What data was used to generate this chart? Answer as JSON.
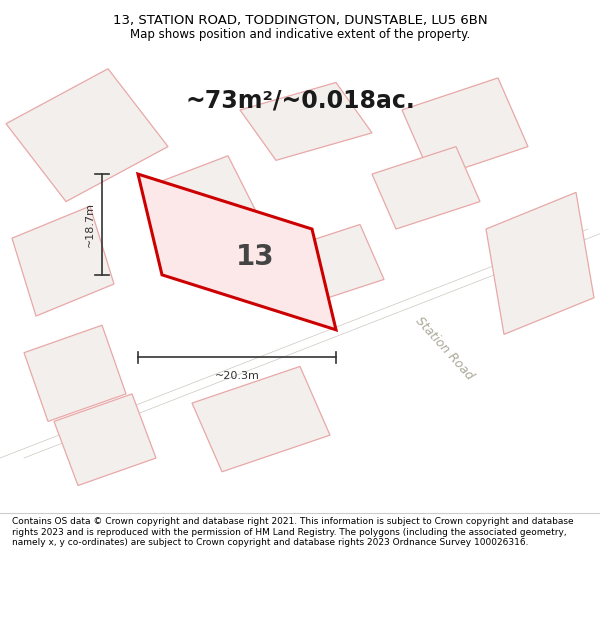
{
  "title_line1": "13, STATION ROAD, TODDINGTON, DUNSTABLE, LU5 6BN",
  "title_line2": "Map shows position and indicative extent of the property.",
  "area_text": "~73m²/~0.018ac.",
  "parcel_label": "13",
  "dim_width": "~20.3m",
  "dim_height": "~18.7m",
  "road_label": "Station Road",
  "footer_text": "Contains OS data © Crown copyright and database right 2021. This information is subject to Crown copyright and database rights 2023 and is reproduced with the permission of HM Land Registry. The polygons (including the associated geometry, namely x, y co-ordinates) are subject to Crown copyright and database rights 2023 Ordnance Survey 100026316.",
  "bg_color": "#f0efed",
  "map_bg": "#edecea",
  "building_color": "#e8a8a8",
  "highlight_color": "#cc0000",
  "footer_bg": "#ffffff",
  "title_bg": "#ffffff"
}
